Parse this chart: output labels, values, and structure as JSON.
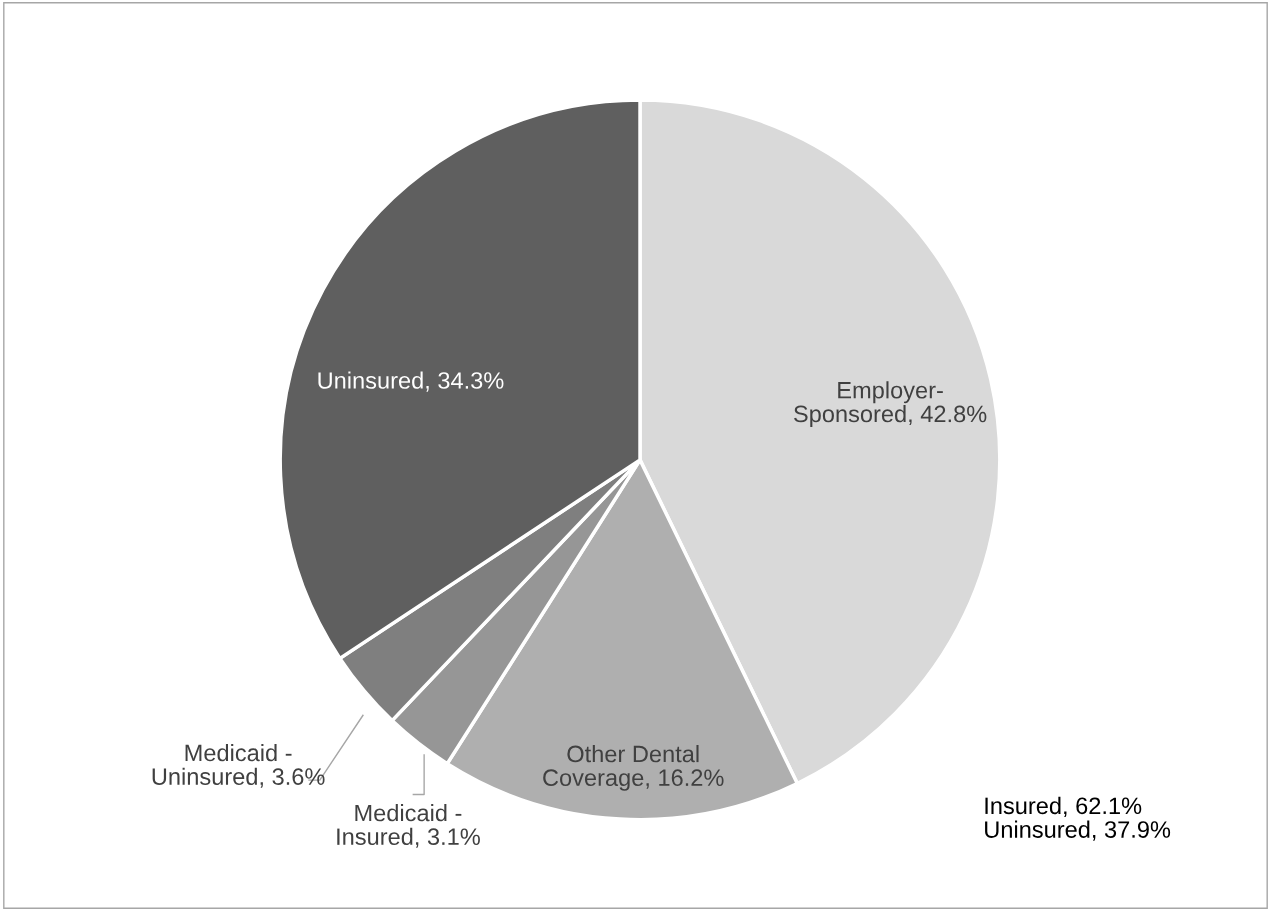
{
  "chart_data": {
    "type": "pie",
    "categories": [
      "Employer-Sponsored",
      "Other Dental Coverage",
      "Medicaid - Insured",
      "Medicaid - Uninsured",
      "Uninsured"
    ],
    "values": [
      42.8,
      16.2,
      3.1,
      3.6,
      34.3
    ],
    "value_labels": [
      "42.8%",
      "16.2%",
      "3.1%",
      "3.6%",
      "34.3%"
    ],
    "colors": [
      "#d9d9d9",
      "#afafaf",
      "#969696",
      "#7f7f7f",
      "#5f5f5f"
    ],
    "annotations": [
      "Insured, 62.1%\nUninsured, 37.9%"
    ]
  }
}
